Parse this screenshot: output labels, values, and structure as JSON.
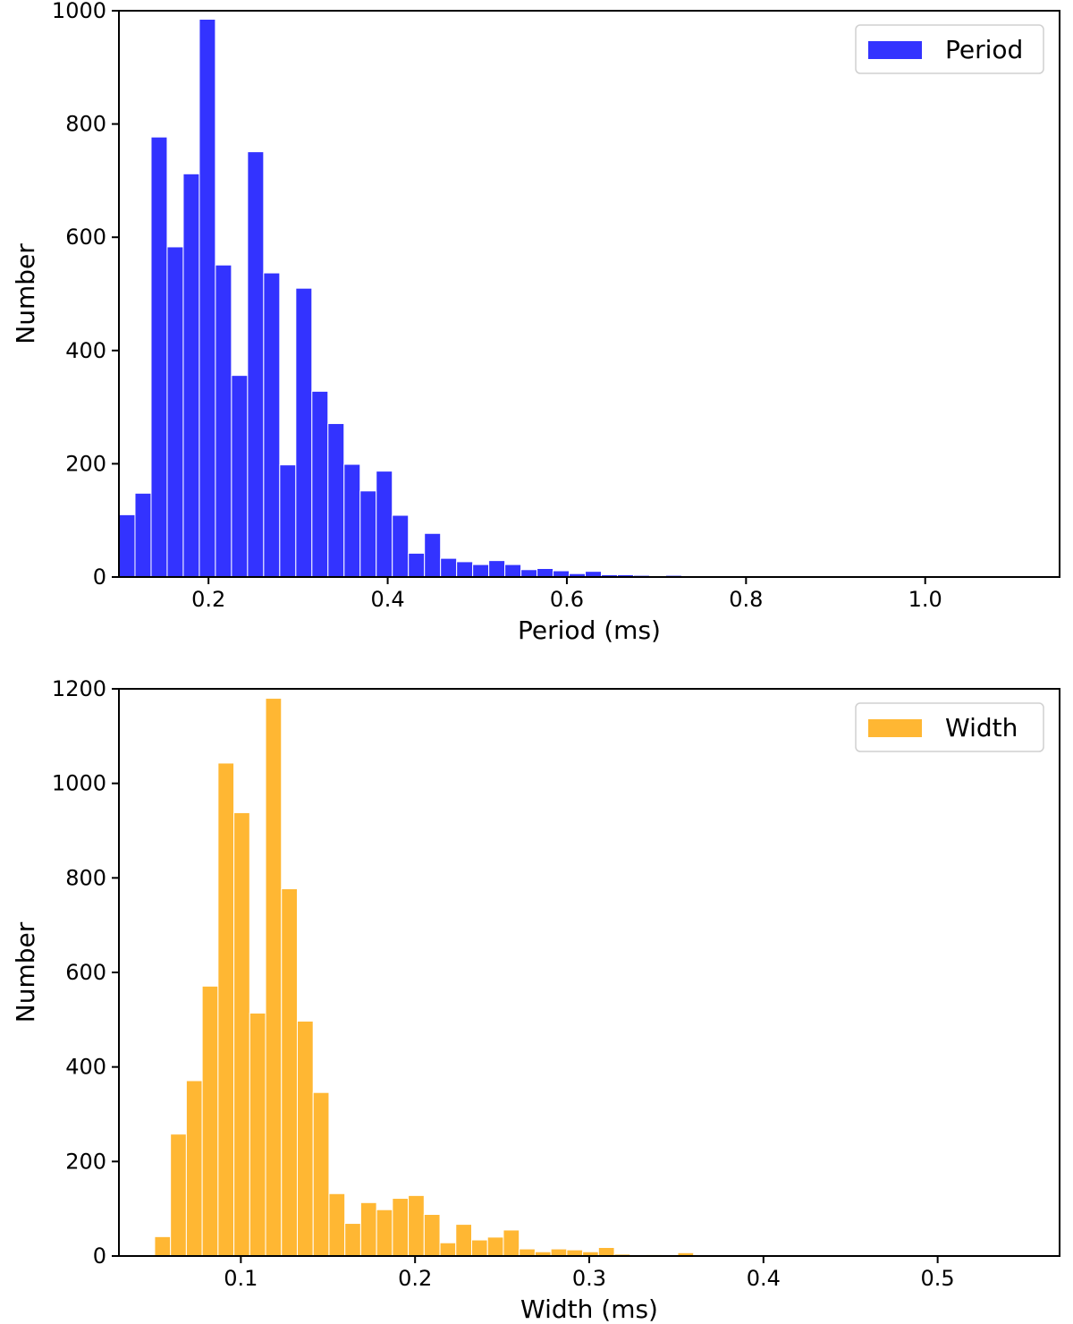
{
  "chart_data": [
    {
      "type": "bar",
      "subtype": "histogram",
      "title": "",
      "xlabel": "Period (ms)",
      "ylabel": "Number",
      "xlim": [
        0.1,
        1.15
      ],
      "ylim": [
        0,
        1000
      ],
      "xticks": [
        "0.2",
        "0.4",
        "0.6",
        "0.8",
        "1.0"
      ],
      "xtick_values": [
        0.2,
        0.4,
        0.6,
        0.8,
        1.0
      ],
      "yticks": [
        "0",
        "200",
        "400",
        "600",
        "800",
        "1000"
      ],
      "ytick_values": [
        0,
        200,
        400,
        600,
        800,
        1000
      ],
      "grid": false,
      "legend": "top-right",
      "color": "#0000ff",
      "bin_start": 0.1,
      "bin_width": 0.01795,
      "series": [
        {
          "name": "Period",
          "values": [
            110,
            148,
            777,
            583,
            712,
            985,
            551,
            356,
            751,
            537,
            198,
            510,
            328,
            271,
            199,
            152,
            187,
            109,
            42,
            77,
            33,
            27,
            22,
            29,
            22,
            13,
            15,
            11,
            6,
            10,
            4,
            4,
            3,
            0,
            3
          ]
        }
      ]
    },
    {
      "type": "bar",
      "subtype": "histogram",
      "title": "",
      "xlabel": "Width (ms)",
      "ylabel": "Number",
      "xlim": [
        0.03,
        0.57
      ],
      "ylim": [
        0,
        1200
      ],
      "xticks": [
        "0.1",
        "0.2",
        "0.3",
        "0.4",
        "0.5"
      ],
      "xtick_values": [
        0.1,
        0.2,
        0.3,
        0.4,
        0.5
      ],
      "yticks": [
        "0",
        "200",
        "400",
        "600",
        "800",
        "1000",
        "1200"
      ],
      "ytick_values": [
        0,
        200,
        400,
        600,
        800,
        1000,
        1200
      ],
      "grid": false,
      "legend": "top-right",
      "color": "#ffa500",
      "bin_start": 0.0505,
      "bin_width": 0.0091,
      "series": [
        {
          "name": "Width",
          "values": [
            41,
            258,
            371,
            571,
            1043,
            938,
            514,
            1180,
            777,
            497,
            346,
            132,
            69,
            113,
            98,
            122,
            128,
            88,
            28,
            67,
            34,
            40,
            55,
            15,
            9,
            15,
            13,
            9,
            18,
            4,
            0,
            3,
            0,
            7
          ]
        }
      ]
    }
  ]
}
